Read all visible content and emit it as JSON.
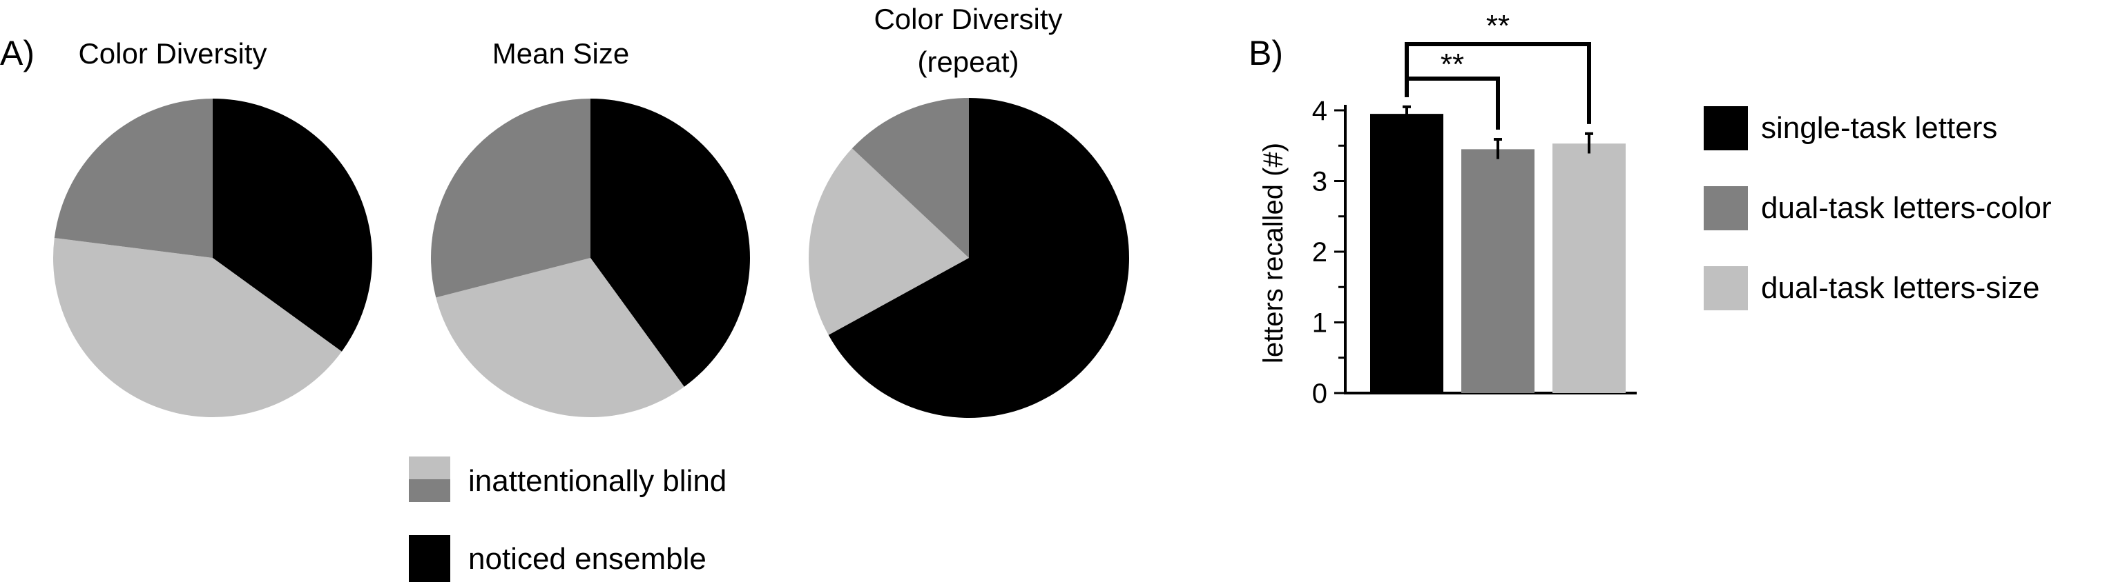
{
  "panels": {
    "a_label": "A)",
    "b_label": "B)"
  },
  "colors": {
    "black": "#000000",
    "dark_gray": "#808080",
    "light_gray": "#c0c0c0"
  },
  "chart_data": [
    {
      "type": "pie",
      "title": "Color Diversity",
      "slices": [
        {
          "label": "noticed ensemble",
          "value": 0.35,
          "color": "#000000"
        },
        {
          "label": "inattentionally blind",
          "value": 0.42,
          "color": "#c0c0c0"
        },
        {
          "label": "inattentionally blind",
          "value": 0.23,
          "color": "#808080"
        }
      ]
    },
    {
      "type": "pie",
      "title": "Mean Size",
      "slices": [
        {
          "label": "noticed ensemble",
          "value": 0.4,
          "color": "#000000"
        },
        {
          "label": "inattentionally blind",
          "value": 0.31,
          "color": "#c0c0c0"
        },
        {
          "label": "inattentionally blind",
          "value": 0.29,
          "color": "#808080"
        }
      ]
    },
    {
      "type": "pie",
      "title": "Color Diversity",
      "subtitle": "(repeat)",
      "slices": [
        {
          "label": "noticed ensemble",
          "value": 0.67,
          "color": "#000000"
        },
        {
          "label": "inattentionally blind",
          "value": 0.2,
          "color": "#c0c0c0"
        },
        {
          "label": "inattentionally blind",
          "value": 0.13,
          "color": "#808080"
        }
      ]
    },
    {
      "type": "bar",
      "categories": [
        "single-task letters",
        "dual-task letters-color",
        "dual-task letters-size"
      ],
      "values": [
        3.95,
        3.45,
        3.53
      ],
      "errors": [
        0.1,
        0.14,
        0.14
      ],
      "colors": [
        "#000000",
        "#808080",
        "#c0c0c0"
      ],
      "ylabel": "letters recalled (#)",
      "ylim": [
        0,
        4
      ],
      "yticks": [
        "0",
        "1",
        "2",
        "3",
        "4"
      ],
      "legend_position": "right",
      "significance": [
        {
          "from": 0,
          "to": 1,
          "label": "**"
        },
        {
          "from": 0,
          "to": 2,
          "label": "**"
        }
      ]
    }
  ],
  "pie_legend": {
    "position": "bottom",
    "items": [
      {
        "label": "inattentionally blind",
        "colors": [
          "#c0c0c0",
          "#808080"
        ]
      },
      {
        "label": "noticed ensemble",
        "colors": [
          "#000000"
        ]
      }
    ]
  }
}
